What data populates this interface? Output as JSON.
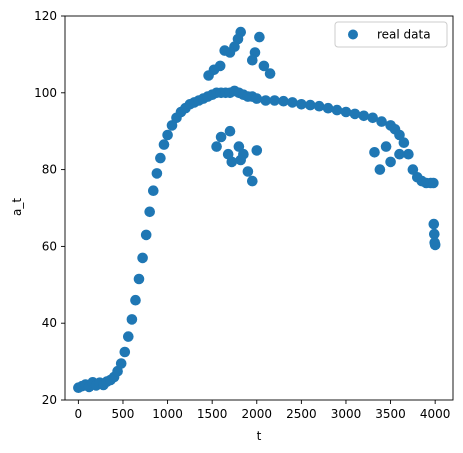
{
  "chart_data": {
    "type": "scatter",
    "title": "",
    "xlabel": "t",
    "ylabel": "a_t",
    "xlim": [
      -150,
      4200
    ],
    "ylim": [
      20,
      120
    ],
    "xticks": [
      0,
      500,
      1000,
      1500,
      2000,
      2500,
      3000,
      3500,
      4000
    ],
    "yticks": [
      20,
      40,
      60,
      80,
      100,
      120
    ],
    "xtick_labels": [
      "0",
      "500",
      "1000",
      "1500",
      "2000",
      "2500",
      "3000",
      "3500",
      "4000"
    ],
    "ytick_labels": [
      "20",
      "40",
      "60",
      "80",
      "100",
      "120"
    ],
    "grid": false,
    "legend": {
      "position": "top-right",
      "entries": [
        "real data"
      ]
    },
    "series": [
      {
        "name": "real data",
        "color": "#1f77b4",
        "marker": "circle",
        "points": [
          [
            0,
            23.2
          ],
          [
            40,
            23.6
          ],
          [
            80,
            24.0
          ],
          [
            120,
            23.4
          ],
          [
            160,
            24.6
          ],
          [
            200,
            23.8
          ],
          [
            240,
            24.5
          ],
          [
            280,
            23.9
          ],
          [
            320,
            24.8
          ],
          [
            360,
            25.2
          ],
          [
            400,
            26.0
          ],
          [
            440,
            27.5
          ],
          [
            480,
            29.5
          ],
          [
            520,
            32.5
          ],
          [
            560,
            36.5
          ],
          [
            600,
            41.0
          ],
          [
            640,
            46.0
          ],
          [
            680,
            51.5
          ],
          [
            720,
            57.0
          ],
          [
            760,
            63.0
          ],
          [
            800,
            69.0
          ],
          [
            840,
            74.5
          ],
          [
            880,
            79.0
          ],
          [
            920,
            83.0
          ],
          [
            960,
            86.5
          ],
          [
            1000,
            89.0
          ],
          [
            1050,
            91.5
          ],
          [
            1100,
            93.5
          ],
          [
            1150,
            95.0
          ],
          [
            1200,
            96.0
          ],
          [
            1250,
            97.0
          ],
          [
            1300,
            97.5
          ],
          [
            1350,
            98.0
          ],
          [
            1400,
            98.5
          ],
          [
            1450,
            99.0
          ],
          [
            1500,
            99.5
          ],
          [
            1550,
            100.0
          ],
          [
            1600,
            100.0
          ],
          [
            1650,
            100.0
          ],
          [
            1700,
            100.0
          ],
          [
            1750,
            100.5
          ],
          [
            1800,
            100.0
          ],
          [
            1850,
            99.5
          ],
          [
            1900,
            99.0
          ],
          [
            1950,
            99.0
          ],
          [
            2000,
            98.5
          ],
          [
            2100,
            98.0
          ],
          [
            2200,
            98.0
          ],
          [
            2300,
            97.8
          ],
          [
            2400,
            97.5
          ],
          [
            2500,
            97.0
          ],
          [
            2600,
            96.8
          ],
          [
            2700,
            96.5
          ],
          [
            2800,
            96.0
          ],
          [
            2900,
            95.5
          ],
          [
            3000,
            95.0
          ],
          [
            3100,
            94.5
          ],
          [
            3200,
            94.0
          ],
          [
            3300,
            93.5
          ],
          [
            3400,
            92.5
          ],
          [
            3500,
            91.5
          ],
          [
            3550,
            90.5
          ],
          [
            3600,
            89.0
          ],
          [
            3650,
            87.0
          ],
          [
            3700,
            84.0
          ],
          [
            3750,
            80.0
          ],
          [
            3800,
            78.0
          ],
          [
            3850,
            77.0
          ],
          [
            3900,
            76.5
          ],
          [
            3950,
            76.5
          ],
          [
            3980,
            76.5
          ],
          [
            3985,
            65.8
          ],
          [
            3990,
            63.2
          ],
          [
            3995,
            61.0
          ],
          [
            4000,
            60.4
          ],
          [
            1820,
            115.8
          ],
          [
            1790,
            114.0
          ],
          [
            1750,
            112.0
          ],
          [
            1700,
            110.5
          ],
          [
            1640,
            111.0
          ],
          [
            1590,
            107.0
          ],
          [
            1980,
            110.5
          ],
          [
            2030,
            114.5
          ],
          [
            1950,
            108.5
          ],
          [
            2080,
            107.0
          ],
          [
            2150,
            105.0
          ],
          [
            1520,
            106.0
          ],
          [
            1460,
            104.5
          ],
          [
            1720,
            82.0
          ],
          [
            1820,
            82.5
          ],
          [
            1900,
            79.5
          ],
          [
            1950,
            77.0
          ],
          [
            1680,
            84.0
          ],
          [
            1550,
            86.0
          ],
          [
            1800,
            86.0
          ],
          [
            1600,
            88.5
          ],
          [
            1700,
            90.0
          ],
          [
            2000,
            85.0
          ],
          [
            1850,
            84.0
          ],
          [
            3320,
            84.5
          ],
          [
            3380,
            80.0
          ],
          [
            3450,
            86.0
          ],
          [
            3600,
            84.0
          ],
          [
            3500,
            82.0
          ]
        ]
      }
    ]
  }
}
